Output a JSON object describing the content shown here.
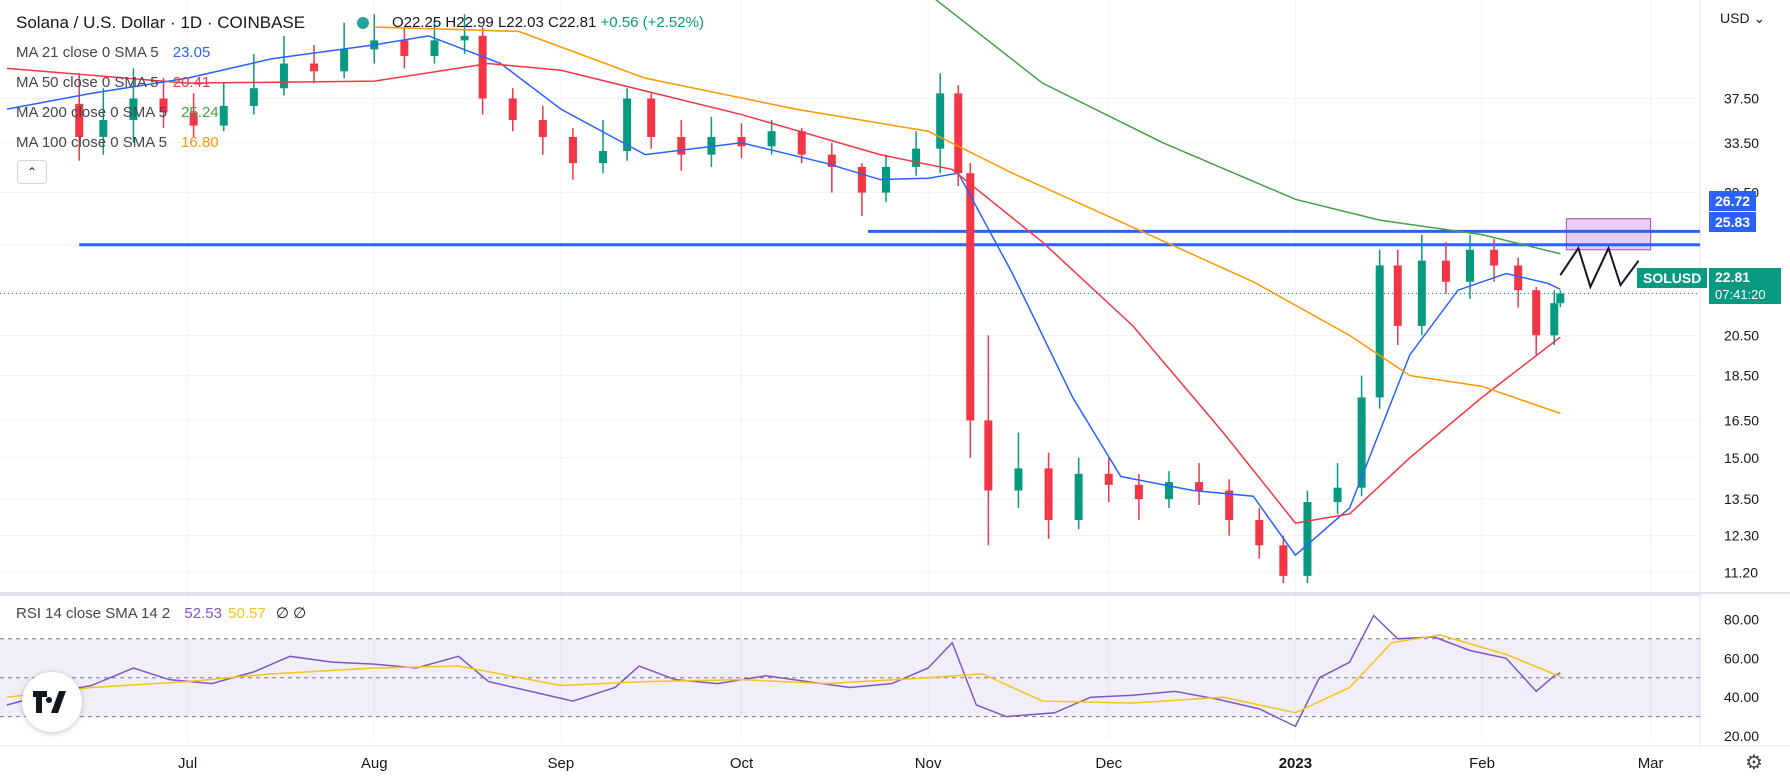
{
  "header": {
    "title": "Solana / U.S. Dollar · 1D · COINBASE",
    "open": "O22.25",
    "high": "H22.99",
    "low": "L22.03",
    "close": "C22.81",
    "change": "+0.56 (+2.52%)"
  },
  "indicators": [
    {
      "label": "MA 21 close 0 SMA 5",
      "value": "23.05",
      "color": "#2962ff"
    },
    {
      "label": "MA 50 close 0 SMA 5",
      "value": "20.41",
      "color": "#f23645"
    },
    {
      "label": "MA 200 close 0 SMA 5",
      "value": "25.24",
      "color": "#43a047"
    },
    {
      "label": "MA 100 close 0 SMA 5",
      "value": "16.80",
      "color": "#ff9800"
    }
  ],
  "rsi_legend": {
    "label": "RSI 14 close SMA 14 2",
    "rsi": "52.53",
    "sma": "50.57",
    "extra": "∅ ∅",
    "rsi_color": "#7e57c2",
    "sma_color": "#f5c518"
  },
  "currency": "USD",
  "symbol_badge": {
    "symbol": "SOLUSD",
    "price": "22.81",
    "countdown": "07:41:20",
    "color": "#089981"
  },
  "level_badges": [
    "26.72",
    "25.83"
  ],
  "chart_data": [
    {
      "type": "candlestick",
      "title": "Solana / U.S. Dollar · 1D · COINBASE",
      "y_scale": "log",
      "ylim": [
        10.9,
        47
      ],
      "y_ticks": [
        "37.50",
        "33.50",
        "29.50",
        "25.83",
        "22.81",
        "20.50",
        "18.50",
        "16.50",
        "15.00",
        "13.50",
        "12.30",
        "11.20"
      ],
      "x_labels": [
        "Jul",
        "Aug",
        "Sep",
        "Oct",
        "Nov",
        "Dec",
        "2023",
        "Feb",
        "Mar"
      ],
      "x_label_dates": [
        "2022-07-01",
        "2022-08-01",
        "2022-09-01",
        "2022-10-01",
        "2022-11-01",
        "2022-12-01",
        "2023-01-01",
        "2023-02-01",
        "2023-03-01"
      ],
      "series": [
        {
          "name": "MA 21 close 0 SMA 5",
          "color": "#2962ff",
          "points": [
            [
              "2022-06-01",
              36.5
            ],
            [
              "2022-06-15",
              38.0
            ],
            [
              "2022-07-01",
              39.5
            ],
            [
              "2022-07-15",
              41.5
            ],
            [
              "2022-08-01",
              43.0
            ],
            [
              "2022-08-10",
              44.0
            ],
            [
              "2022-08-22",
              41.0
            ],
            [
              "2022-09-01",
              36.5
            ],
            [
              "2022-09-15",
              32.5
            ],
            [
              "2022-10-01",
              33.5
            ],
            [
              "2022-10-15",
              31.8
            ],
            [
              "2022-10-24",
              30.5
            ],
            [
              "2022-11-01",
              30.6
            ],
            [
              "2022-11-06",
              31.0
            ],
            [
              "2022-11-15",
              24.0
            ],
            [
              "2022-11-25",
              17.5
            ],
            [
              "2022-12-03",
              14.3
            ],
            [
              "2022-12-15",
              13.8
            ],
            [
              "2022-12-25",
              13.6
            ],
            [
              "2023-01-01",
              11.7
            ],
            [
              "2023-01-10",
              13.2
            ],
            [
              "2023-01-20",
              19.5
            ],
            [
              "2023-01-28",
              23.0
            ],
            [
              "2023-02-05",
              24.0
            ],
            [
              "2023-02-12",
              23.4
            ],
            [
              "2023-02-14",
              23.05
            ]
          ]
        },
        {
          "name": "MA 50 close 0 SMA 5",
          "color": "#f23645",
          "points": [
            [
              "2022-06-01",
              40.5
            ],
            [
              "2022-07-01",
              39.0
            ],
            [
              "2022-08-01",
              39.2
            ],
            [
              "2022-08-20",
              41.0
            ],
            [
              "2022-09-01",
              40.3
            ],
            [
              "2022-10-01",
              36.0
            ],
            [
              "2022-10-24",
              32.5
            ],
            [
              "2022-11-05",
              31.3
            ],
            [
              "2022-11-20",
              26.0
            ],
            [
              "2022-12-05",
              21.0
            ],
            [
              "2022-12-20",
              16.0
            ],
            [
              "2023-01-01",
              12.7
            ],
            [
              "2023-01-10",
              13.0
            ],
            [
              "2023-01-20",
              15.0
            ],
            [
              "2023-02-01",
              17.5
            ],
            [
              "2023-02-14",
              20.41
            ]
          ]
        },
        {
          "name": "MA 200 close 0 SMA 5",
          "color": "#43a047",
          "points": [
            [
              "2022-11-01",
              49.0
            ],
            [
              "2022-11-20",
              39.0
            ],
            [
              "2022-12-10",
              33.5
            ],
            [
              "2023-01-01",
              29.0
            ],
            [
              "2023-01-15",
              27.5
            ],
            [
              "2023-02-01",
              26.5
            ],
            [
              "2023-02-14",
              25.24
            ]
          ]
        },
        {
          "name": "MA 100 close 0 SMA 5",
          "color": "#ff9800",
          "points": [
            [
              "2022-08-01",
              45.0
            ],
            [
              "2022-08-25",
              44.5
            ],
            [
              "2022-09-15",
              39.5
            ],
            [
              "2022-10-10",
              36.5
            ],
            [
              "2022-11-01",
              34.5
            ],
            [
              "2022-11-15",
              31.0
            ],
            [
              "2022-12-05",
              27.0
            ],
            [
              "2022-12-25",
              23.5
            ],
            [
              "2023-01-10",
              20.5
            ],
            [
              "2023-01-20",
              18.5
            ],
            [
              "2023-02-01",
              18.0
            ],
            [
              "2023-02-14",
              16.8
            ]
          ]
        }
      ],
      "candles": [
        [
          "2022-06-13",
          37.0,
          34.0,
          40.0,
          32.0
        ],
        [
          "2022-06-17",
          34.0,
          35.5,
          38.5,
          32.5
        ],
        [
          "2022-06-22",
          35.5,
          37.5,
          40.5,
          33.5
        ],
        [
          "2022-06-27",
          37.5,
          36.2,
          39.5,
          34.8
        ],
        [
          "2022-07-02",
          36.2,
          35.0,
          38.0,
          34.0
        ],
        [
          "2022-07-07",
          35.0,
          36.8,
          39.0,
          34.5
        ],
        [
          "2022-07-12",
          36.8,
          38.5,
          42.0,
          36.0
        ],
        [
          "2022-07-17",
          38.5,
          41.0,
          44.0,
          37.8
        ],
        [
          "2022-07-22",
          41.0,
          40.2,
          43.0,
          39.0
        ],
        [
          "2022-07-27",
          40.2,
          42.5,
          45.5,
          39.5
        ],
        [
          "2022-08-01",
          42.5,
          43.5,
          46.5,
          41.0
        ],
        [
          "2022-08-06",
          43.5,
          41.8,
          45.0,
          40.5
        ],
        [
          "2022-08-11",
          41.8,
          43.5,
          46.0,
          41.0
        ],
        [
          "2022-08-16",
          43.5,
          44.0,
          46.5,
          42.0
        ],
        [
          "2022-08-19",
          44.0,
          37.5,
          45.0,
          36.0
        ],
        [
          "2022-08-24",
          37.5,
          35.5,
          38.5,
          34.5
        ],
        [
          "2022-08-29",
          35.5,
          34.0,
          36.8,
          32.5
        ],
        [
          "2022-09-03",
          34.0,
          31.8,
          34.8,
          30.5
        ],
        [
          "2022-09-08",
          31.8,
          32.8,
          35.5,
          31.0
        ],
        [
          "2022-09-12",
          32.8,
          37.5,
          38.5,
          32.0
        ],
        [
          "2022-09-16",
          37.5,
          34.0,
          38.0,
          33.0
        ],
        [
          "2022-09-21",
          34.0,
          32.5,
          35.5,
          31.2
        ],
        [
          "2022-09-26",
          32.5,
          34.0,
          35.8,
          31.5
        ],
        [
          "2022-10-01",
          34.0,
          33.2,
          35.2,
          32.2
        ],
        [
          "2022-10-06",
          33.2,
          34.5,
          35.5,
          32.5
        ],
        [
          "2022-10-11",
          34.5,
          32.5,
          34.8,
          31.8
        ],
        [
          "2022-10-16",
          32.5,
          31.5,
          33.5,
          29.5
        ],
        [
          "2022-10-21",
          31.5,
          29.5,
          31.8,
          27.8
        ],
        [
          "2022-10-25",
          29.5,
          31.5,
          32.5,
          28.8
        ],
        [
          "2022-10-30",
          31.5,
          33.0,
          34.5,
          30.8
        ],
        [
          "2022-11-03",
          33.0,
          38.0,
          40.0,
          31.0
        ],
        [
          "2022-11-06",
          38.0,
          31.0,
          38.8,
          30.0
        ],
        [
          "2022-11-08",
          31.0,
          16.5,
          31.8,
          15.0
        ],
        [
          "2022-11-11",
          16.5,
          13.8,
          20.5,
          12.0
        ],
        [
          "2022-11-16",
          13.8,
          14.6,
          16.0,
          13.2
        ],
        [
          "2022-11-21",
          14.6,
          12.8,
          15.2,
          12.2
        ],
        [
          "2022-11-26",
          12.8,
          14.4,
          15.0,
          12.5
        ],
        [
          "2022-12-01",
          14.4,
          14.0,
          15.0,
          13.4
        ],
        [
          "2022-12-06",
          14.0,
          13.5,
          14.4,
          12.8
        ],
        [
          "2022-12-11",
          13.5,
          14.1,
          14.5,
          13.2
        ],
        [
          "2022-12-16",
          14.1,
          13.8,
          14.8,
          13.3
        ],
        [
          "2022-12-21",
          13.8,
          12.8,
          14.2,
          12.3
        ],
        [
          "2022-12-26",
          12.8,
          12.0,
          13.2,
          11.6
        ],
        [
          "2022-12-30",
          12.0,
          11.1,
          12.3,
          10.9
        ],
        [
          "2023-01-03",
          11.1,
          13.4,
          13.8,
          10.9
        ],
        [
          "2023-01-08",
          13.4,
          13.9,
          14.8,
          13.0
        ],
        [
          "2023-01-12",
          13.9,
          17.5,
          18.5,
          13.6
        ],
        [
          "2023-01-15",
          17.5,
          24.5,
          25.5,
          17.0
        ],
        [
          "2023-01-18",
          24.5,
          21.0,
          25.5,
          20.0
        ],
        [
          "2023-01-22",
          21.0,
          24.8,
          26.5,
          20.5
        ],
        [
          "2023-01-26",
          24.8,
          23.5,
          26.0,
          22.8
        ],
        [
          "2023-01-30",
          23.5,
          25.5,
          26.5,
          22.5
        ],
        [
          "2023-02-03",
          25.5,
          24.5,
          26.2,
          23.5
        ],
        [
          "2023-02-07",
          24.5,
          23.0,
          25.0,
          22.0
        ],
        [
          "2023-02-10",
          23.0,
          20.5,
          23.2,
          19.5
        ],
        [
          "2023-02-13",
          20.5,
          22.25,
          23.0,
          20.0
        ],
        [
          "2023-02-14",
          22.25,
          22.81,
          22.99,
          22.03
        ]
      ],
      "annotations": {
        "horizontal_levels": [
          26.72,
          25.83
        ],
        "level_starts": [
          "2022-10-22",
          "2022-06-13"
        ],
        "zone": {
          "from": "2023-02-15",
          "to": "2023-03-01",
          "low": 25.5,
          "high": 27.6
        },
        "projection": [
          [
            "2023-02-14",
            23.9
          ],
          [
            "2023-02-17",
            25.6
          ],
          [
            "2023-02-19",
            23.2
          ],
          [
            "2023-02-22",
            25.6
          ],
          [
            "2023-02-24",
            23.3
          ],
          [
            "2023-02-27",
            24.8
          ]
        ]
      }
    },
    {
      "type": "line",
      "title": "RSI 14 close SMA 14 2",
      "y_ticks": [
        "80.00",
        "60.00",
        "40.00",
        "20.00"
      ],
      "ylim": [
        18,
        92
      ],
      "bands": [
        30,
        50,
        70
      ],
      "series": [
        {
          "name": "RSI",
          "color": "#7e57c2",
          "points": [
            [
              "2022-06-01",
              36
            ],
            [
              "2022-06-08",
              42
            ],
            [
              "2022-06-15",
              46
            ],
            [
              "2022-06-22",
              55
            ],
            [
              "2022-06-28",
              49
            ],
            [
              "2022-07-05",
              47
            ],
            [
              "2022-07-12",
              53
            ],
            [
              "2022-07-18",
              61
            ],
            [
              "2022-07-25",
              58
            ],
            [
              "2022-08-01",
              57
            ],
            [
              "2022-08-08",
              55
            ],
            [
              "2022-08-15",
              61
            ],
            [
              "2022-08-20",
              48
            ],
            [
              "2022-08-27",
              43
            ],
            [
              "2022-09-03",
              38
            ],
            [
              "2022-09-10",
              45
            ],
            [
              "2022-09-14",
              56
            ],
            [
              "2022-09-20",
              49
            ],
            [
              "2022-09-27",
              47
            ],
            [
              "2022-10-05",
              51
            ],
            [
              "2022-10-12",
              48
            ],
            [
              "2022-10-19",
              45
            ],
            [
              "2022-10-26",
              47
            ],
            [
              "2022-11-01",
              55
            ],
            [
              "2022-11-05",
              68
            ],
            [
              "2022-11-09",
              36
            ],
            [
              "2022-11-14",
              30
            ],
            [
              "2022-11-22",
              32
            ],
            [
              "2022-11-28",
              40
            ],
            [
              "2022-12-05",
              41
            ],
            [
              "2022-12-12",
              43
            ],
            [
              "2022-12-19",
              39
            ],
            [
              "2022-12-26",
              34
            ],
            [
              "2023-01-01",
              25
            ],
            [
              "2023-01-05",
              50
            ],
            [
              "2023-01-10",
              58
            ],
            [
              "2023-01-14",
              82
            ],
            [
              "2023-01-18",
              70
            ],
            [
              "2023-01-24",
              71
            ],
            [
              "2023-01-30",
              64
            ],
            [
              "2023-02-05",
              60
            ],
            [
              "2023-02-10",
              43
            ],
            [
              "2023-02-13",
              51
            ],
            [
              "2023-02-14",
              52.53
            ]
          ]
        },
        {
          "name": "SMA",
          "color": "#f5c518",
          "points": [
            [
              "2022-06-01",
              40
            ],
            [
              "2022-06-15",
              45
            ],
            [
              "2022-07-01",
              48
            ],
            [
              "2022-07-15",
              52
            ],
            [
              "2022-08-01",
              55
            ],
            [
              "2022-08-15",
              56
            ],
            [
              "2022-09-01",
              46
            ],
            [
              "2022-09-15",
              48
            ],
            [
              "2022-10-01",
              49
            ],
            [
              "2022-10-15",
              47
            ],
            [
              "2022-11-01",
              50
            ],
            [
              "2022-11-10",
              52
            ],
            [
              "2022-11-20",
              38
            ],
            [
              "2022-12-05",
              37
            ],
            [
              "2022-12-20",
              40
            ],
            [
              "2023-01-01",
              32
            ],
            [
              "2023-01-10",
              45
            ],
            [
              "2023-01-17",
              68
            ],
            [
              "2023-01-25",
              72
            ],
            [
              "2023-02-05",
              62
            ],
            [
              "2023-02-14",
              50.57
            ]
          ]
        }
      ]
    }
  ],
  "time_axis": {
    "labels": [
      "Jul",
      "Aug",
      "Sep",
      "Oct",
      "Nov",
      "Dec",
      "2023",
      "Feb",
      "Mar"
    ]
  }
}
